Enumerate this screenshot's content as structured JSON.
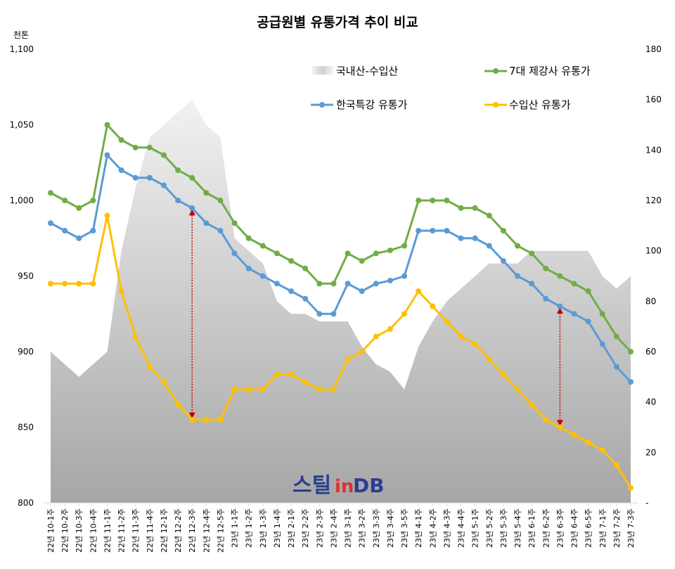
{
  "chart_data": {
    "type": "line",
    "title": "공급원별 유통가격 추이 비교",
    "y_unit": "천톤",
    "ylim": [
      800,
      1100
    ],
    "yticks": [
      "800",
      "850",
      "900",
      "950",
      "1,000",
      "1,050",
      "1,100"
    ],
    "y2lim": [
      0,
      180
    ],
    "y2ticks": [
      "-",
      "20",
      "40",
      "60",
      "80",
      "100",
      "120",
      "140",
      "160",
      "180"
    ],
    "categories": [
      "22년 10-1주",
      "22년 10-2주",
      "22년 10-3주",
      "22년 10-4주",
      "22년 11-1주",
      "22년 11-2주",
      "22년 11-3주",
      "22년 11-4주",
      "22년 12-1주",
      "22년 12-2주",
      "22년 12-3주",
      "22년 12-4주",
      "22년 12-5주",
      "23년 1-1주",
      "23년 1-2주",
      "23년 1-3주",
      "23년 1-4주",
      "23년 2-1주",
      "23년 2-2주",
      "23년 2-3주",
      "23년 2-4주",
      "23년 3-1주",
      "23년 3-2주",
      "23년 3-3주",
      "23년 3-4주",
      "23년 3-5주",
      "23년 4-1주",
      "23년 4-2주",
      "23년 4-3주",
      "23년 4-4주",
      "23년 5-1주",
      "23년 5-2주",
      "23년 5-3주",
      "23년 5-4주",
      "23년 6-1주",
      "23년 6-2주",
      "23년 6-3주",
      "23년 6-4주",
      "23년 6-5주",
      "23년 7-1주",
      "23년 7-2주",
      "23년 7-3주"
    ],
    "area": {
      "name": "국내산-수입산",
      "axis": "right",
      "values": [
        60,
        55,
        50,
        55,
        60,
        100,
        125,
        145,
        150,
        155,
        160,
        150,
        145,
        105,
        100,
        95,
        80,
        75,
        75,
        72,
        72,
        72,
        62,
        55,
        52,
        45,
        62,
        72,
        80,
        85,
        90,
        95,
        95,
        95,
        100,
        100,
        100,
        100,
        100,
        90,
        85,
        90
      ]
    },
    "series": [
      {
        "name": "7대 제강사 유통가",
        "color": "#70ad47",
        "values": [
          1005,
          1000,
          995,
          1000,
          1050,
          1040,
          1035,
          1035,
          1030,
          1020,
          1015,
          1005,
          1000,
          985,
          975,
          970,
          965,
          960,
          955,
          945,
          945,
          965,
          960,
          965,
          967,
          970,
          1000,
          1000,
          1000,
          995,
          995,
          990,
          980,
          970,
          965,
          955,
          950,
          945,
          940,
          925,
          910,
          900
        ]
      },
      {
        "name": "한국특강 유통가",
        "color": "#5b9bd5",
        "values": [
          985,
          980,
          975,
          980,
          1030,
          1020,
          1015,
          1015,
          1010,
          1000,
          995,
          985,
          980,
          965,
          955,
          950,
          945,
          940,
          935,
          925,
          925,
          945,
          940,
          945,
          947,
          950,
          980,
          980,
          980,
          975,
          975,
          970,
          960,
          950,
          945,
          935,
          930,
          925,
          920,
          905,
          890,
          880
        ]
      },
      {
        "name": "수입산 유통가",
        "color": "#ffc000",
        "values": [
          945,
          945,
          945,
          945,
          990,
          940,
          910,
          890,
          880,
          865,
          855,
          855,
          855,
          875,
          875,
          875,
          885,
          885,
          880,
          875,
          875,
          895,
          900,
          910,
          915,
          925,
          940,
          930,
          920,
          910,
          905,
          895,
          885,
          875,
          865,
          855,
          850,
          845,
          840,
          835,
          825,
          810
        ]
      }
    ],
    "annotations": [
      {
        "type": "double-arrow",
        "category_index": 10,
        "from": 995,
        "to": 855,
        "color": "#c00000"
      },
      {
        "type": "double-arrow",
        "category_index": 36,
        "from": 930,
        "to": 850,
        "color": "#c00000"
      }
    ],
    "legend": "top-center",
    "grid": false
  },
  "watermark": {
    "text_main": "스틸",
    "text_in": "in",
    "text_db": "DB"
  }
}
